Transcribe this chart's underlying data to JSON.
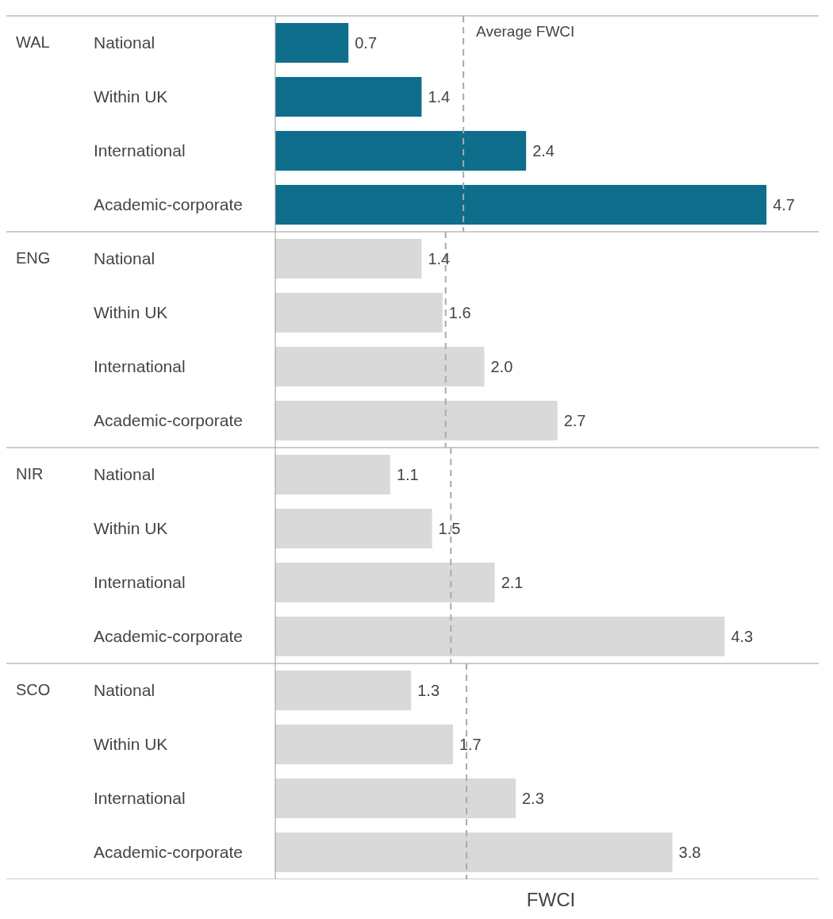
{
  "chart_data": {
    "type": "bar",
    "orientation": "horizontal",
    "xlabel": "FWCI",
    "categories": [
      "National",
      "Within UK",
      "International",
      "Academic-corporate",
      "National",
      "Within UK",
      "International",
      "Academic-corporate",
      "National",
      "Within UK",
      "International",
      "Academic-corporate",
      "National",
      "Within UK",
      "International",
      "Academic-corporate"
    ],
    "values": [
      0.7,
      1.4,
      2.4,
      4.7,
      1.4,
      1.6,
      2.0,
      2.7,
      1.1,
      1.5,
      2.1,
      4.3,
      1.3,
      1.7,
      2.3,
      3.8
    ],
    "colors": [
      "#0e6e8c",
      "#0e6e8c",
      "#0e6e8c",
      "#0e6e8c",
      "#d9d9d9",
      "#d9d9d9",
      "#d9d9d9",
      "#d9d9d9",
      "#d9d9d9",
      "#d9d9d9",
      "#d9d9d9",
      "#d9d9d9",
      "#d9d9d9",
      "#d9d9d9",
      "#d9d9d9",
      "#d9d9d9"
    ],
    "value_labels": [
      "0.7",
      "1.4",
      "2.4",
      "4.7",
      "1.4",
      "1.6",
      "2.0",
      "2.7",
      "1.1",
      "1.5",
      "2.1",
      "4.3",
      "1.3",
      "1.7",
      "2.3",
      "3.8"
    ],
    "xlim": [
      0,
      5.2
    ],
    "tick_labels": "y",
    "annotations": [
      "WAL",
      "ENG",
      "NIR",
      "SCO"
    ],
    "ref_lines": [
      {
        "axis": "x",
        "value": 1.8,
        "label": "Average FWCI",
        "color": "#aaaaaa",
        "line_style": "dashed"
      },
      {
        "axis": "x",
        "value": 1.63,
        "label": null,
        "color": "#aaaaaa",
        "line_style": "dashed"
      },
      {
        "axis": "x",
        "value": 1.68,
        "label": null,
        "color": "#aaaaaa",
        "line_style": "dashed"
      },
      {
        "axis": "x",
        "value": 1.83,
        "label": null,
        "color": "#aaaaaa",
        "line_style": "dashed"
      }
    ]
  }
}
